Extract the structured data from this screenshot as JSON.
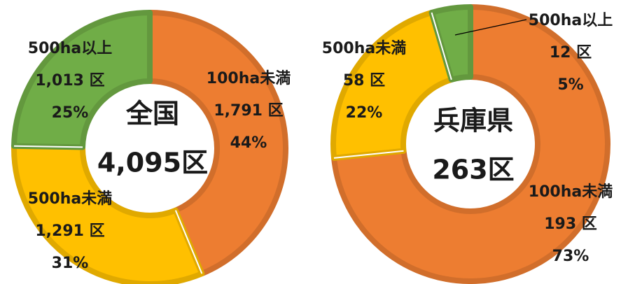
{
  "chart_data": [
    {
      "type": "pie",
      "title": "全国",
      "center_label": "4,095区",
      "categories": [
        "100ha未満",
        "500ha未満",
        "500ha以上"
      ],
      "values": [
        1791,
        1291,
        1013
      ],
      "value_labels": [
        "1,791 区",
        "1,291 区",
        "1,013 区"
      ],
      "percent_labels": [
        "44%",
        "31%",
        "25%"
      ],
      "colors": [
        "#ed7d31",
        "#ffc000",
        "#70ad47"
      ]
    },
    {
      "type": "pie",
      "title": "兵庫県",
      "center_label": "263区",
      "categories": [
        "100ha未満",
        "500ha未満",
        "500ha以上"
      ],
      "values": [
        193,
        58,
        12
      ],
      "value_labels": [
        "193 区",
        "58 区",
        "12 区"
      ],
      "percent_labels": [
        "73%",
        "22%",
        "5%"
      ],
      "colors": [
        "#ed7d31",
        "#ffc000",
        "#70ad47"
      ]
    }
  ]
}
